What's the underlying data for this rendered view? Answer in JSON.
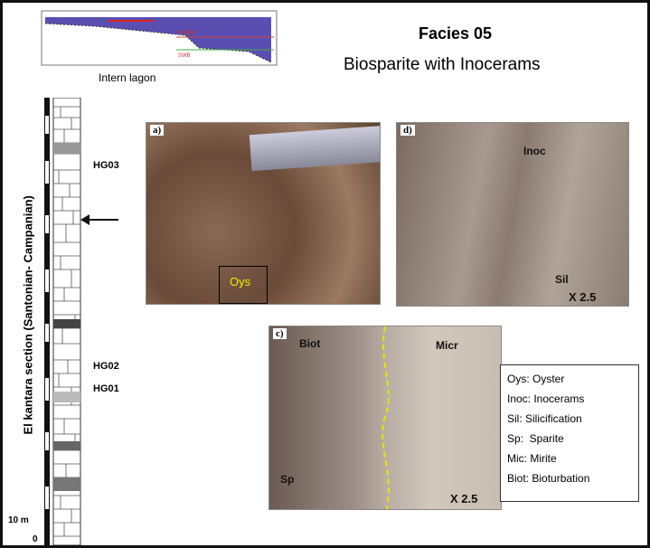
{
  "header": {
    "title": "Facies 05",
    "subtitle": "Biosparite with Inocerams"
  },
  "profile": {
    "caption": "Intern lagon",
    "labels": [
      "FWWB",
      "SWB"
    ]
  },
  "column": {
    "label": "El kantara section (Santonian- Campanian)",
    "samples": [
      "HG03",
      "HG02",
      "HG01"
    ],
    "scale": [
      "10 m",
      "0"
    ]
  },
  "panels": [
    {
      "tag": "a)",
      "labels": [
        "Oys"
      ]
    },
    {
      "tag": "d)",
      "labels": [
        "Inoc",
        "Sil"
      ],
      "magnification": "X 2.5"
    },
    {
      "tag": "c)",
      "labels": [
        "Biot",
        "Micr",
        "Sp"
      ],
      "magnification": "X 2.5"
    }
  ],
  "legend": [
    "Oys: Oyster",
    "Inoc: Inocerams",
    "Sil: Silicification",
    "Sp:  Sparite",
    "Mic: Mirite",
    "Biot: Bioturbation"
  ]
}
